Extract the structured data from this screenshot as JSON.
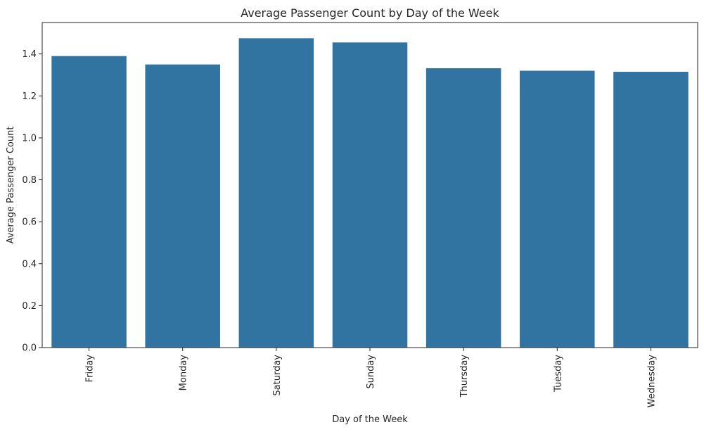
{
  "chart_data": {
    "type": "bar",
    "title": "Average Passenger Count by Day of the Week",
    "xlabel": "Day of the Week",
    "ylabel": "Average Passenger Count",
    "categories": [
      "Friday",
      "Monday",
      "Saturday",
      "Sunday",
      "Thursday",
      "Tuesday",
      "Wednesday"
    ],
    "values": [
      1.39,
      1.35,
      1.475,
      1.455,
      1.332,
      1.32,
      1.315
    ],
    "ylim": [
      0,
      1.55
    ],
    "yticks": [
      0.0,
      0.2,
      0.4,
      0.6,
      0.8,
      1.0,
      1.2,
      1.4
    ],
    "ytick_labels": [
      "0.0",
      "0.2",
      "0.4",
      "0.6",
      "0.8",
      "1.0",
      "1.2",
      "1.4"
    ],
    "bar_color": "#3274a1",
    "grid": false,
    "legend": "none"
  }
}
